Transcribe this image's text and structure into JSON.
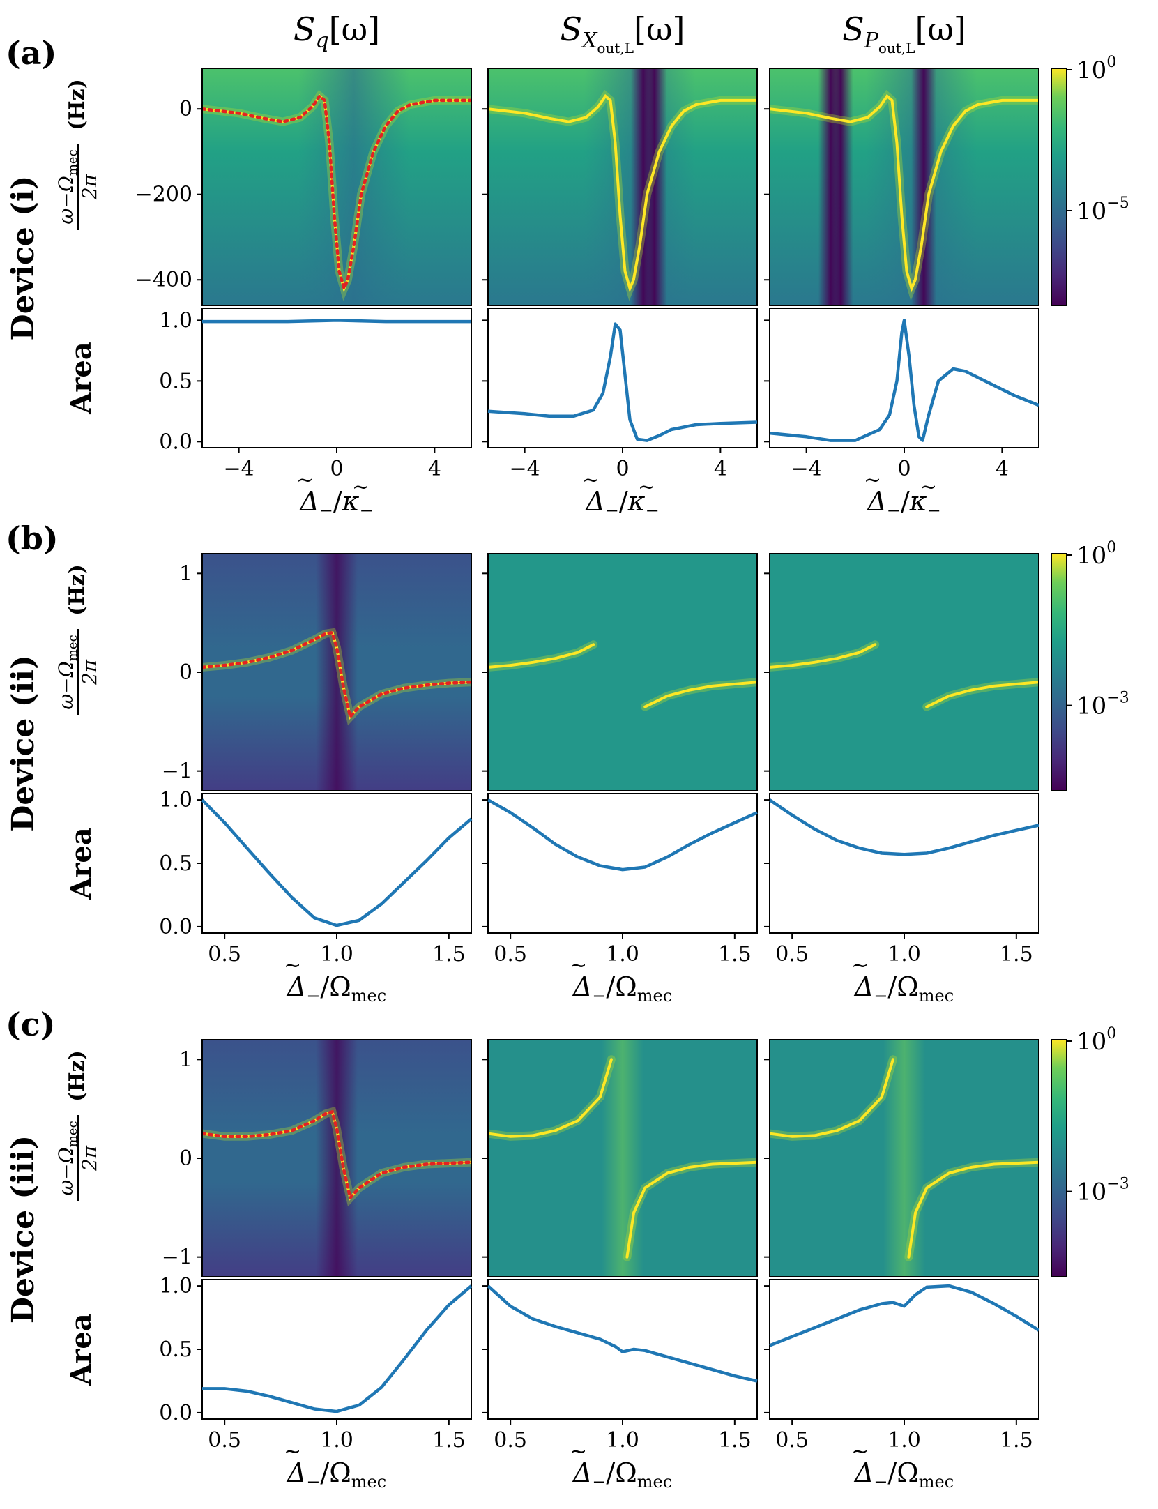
{
  "column_titles": [
    {
      "base": "S",
      "sub": "q",
      "tail": "[ω]"
    },
    {
      "base": "S",
      "sub": "X",
      "subsub": "out,L",
      "tail": "[ω]"
    },
    {
      "base": "S",
      "sub": "P",
      "subsub": "out,L",
      "tail": "[ω]"
    }
  ],
  "rows": [
    {
      "panel": "(a)",
      "device": "Device (i)",
      "area_label": "Area",
      "hz_label": "(Hz)",
      "ylabel_frac_num": "ω−Ω",
      "ylabel_frac_num_sub": "mec",
      "ylabel_frac_den": "2π",
      "xlabel": {
        "tilde": "Δ",
        "sub1": "−",
        "sep": "/",
        "tilde2": "κ",
        "sub2": "−"
      },
      "colorbar_ticks": [
        {
          "base": "10",
          "exp": "0"
        },
        {
          "base": "10",
          "exp": "−5"
        }
      ]
    },
    {
      "panel": "(b)",
      "device": "Device (ii)",
      "area_label": "Area",
      "hz_label": "(Hz)",
      "ylabel_frac_num": "ω−Ω",
      "ylabel_frac_num_sub": "mec",
      "ylabel_frac_den": "2π",
      "xlabel": {
        "tilde": "Δ",
        "sub1": "−",
        "sep": "/Ω",
        "sub2": "mec"
      },
      "colorbar_ticks": [
        {
          "base": "10",
          "exp": "0"
        },
        {
          "base": "10",
          "exp": "−3"
        }
      ]
    },
    {
      "panel": "(c)",
      "device": "Device (iii)",
      "area_label": "Area",
      "hz_label": "(Hz)",
      "ylabel_frac_num": "ω−Ω",
      "ylabel_frac_num_sub": "mec",
      "ylabel_frac_den": "2π",
      "xlabel": {
        "tilde": "Δ",
        "sub1": "−",
        "sep": "/Ω",
        "sub2": "mec"
      },
      "colorbar_ticks": [
        {
          "base": "10",
          "exp": "0"
        },
        {
          "base": "10",
          "exp": "−3"
        }
      ]
    }
  ],
  "chart_data": [
    {
      "type": "heatmap",
      "row": "(a)",
      "x_range": [
        -5.5,
        5.5
      ],
      "y_range": [
        -460,
        95
      ],
      "x_ticks": [
        "−4",
        "0",
        "4"
      ],
      "x_tick_values": [
        -4,
        0,
        4
      ],
      "y_ticks": [
        "0",
        "−200",
        "−400"
      ],
      "y_tick_values": [
        0,
        -200,
        -400
      ],
      "colormap": "viridis",
      "colorbar_scale": "log",
      "area_ylim": [
        -0.05,
        1.1
      ],
      "area_yticks": [
        "0.0",
        "0.5",
        "1.0"
      ],
      "area_ytick_values": [
        0,
        0.5,
        1.0
      ],
      "area_line_color": "#1f77b4",
      "peak_line_color": "#e32222",
      "panels": [
        {
          "ridge": {
            "x": [
              -5.5,
              -4.0,
              -3.0,
              -2.2,
              -1.5,
              -1.0,
              -0.7,
              -0.5,
              -0.3,
              -0.1,
              0.1,
              0.3,
              0.45,
              0.7,
              1.0,
              1.5,
              2.0,
              2.5,
              3.0,
              4.0,
              5.5
            ],
            "y": [
              0,
              -10,
              -22,
              -30,
              -20,
              5,
              30,
              20,
              -80,
              -250,
              -380,
              -420,
              -400,
              -320,
              -200,
              -100,
              -40,
              -5,
              10,
              20,
              20
            ]
          },
          "area": {
            "x": [
              -5.5,
              -2.0,
              0.0,
              2.0,
              5.5
            ],
            "y": [
              0.99,
              0.99,
              1.0,
              0.99,
              0.99
            ]
          }
        },
        {
          "ridge": {
            "x": [
              -5.5,
              -4.0,
              -3.0,
              -2.2,
              -1.5,
              -1.0,
              -0.7,
              -0.5,
              -0.3,
              -0.1,
              0.1,
              0.3,
              0.45,
              0.7,
              1.0,
              1.5,
              2.0,
              2.5,
              3.0,
              4.0,
              5.5
            ],
            "y": [
              0,
              -10,
              -22,
              -30,
              -20,
              5,
              30,
              20,
              -80,
              -250,
              -380,
              -420,
              -400,
              -320,
              -200,
              -100,
              -40,
              -5,
              10,
              20,
              20
            ]
          },
          "dark_bands": [
            0.85,
            1.3
          ],
          "area": {
            "x": [
              -5.5,
              -4.0,
              -3.0,
              -2.0,
              -1.2,
              -0.8,
              -0.5,
              -0.3,
              -0.1,
              0.1,
              0.3,
              0.6,
              1.0,
              1.5,
              2.0,
              3.0,
              4.0,
              5.5
            ],
            "y": [
              0.25,
              0.23,
              0.21,
              0.21,
              0.26,
              0.4,
              0.7,
              0.97,
              0.92,
              0.55,
              0.18,
              0.02,
              0.01,
              0.05,
              0.1,
              0.14,
              0.15,
              0.16
            ]
          }
        },
        {
          "ridge": {
            "x": [
              -5.5,
              -4.0,
              -3.0,
              -2.2,
              -1.5,
              -1.0,
              -0.7,
              -0.5,
              -0.3,
              -0.1,
              0.1,
              0.3,
              0.45,
              0.7,
              1.0,
              1.5,
              2.0,
              2.5,
              3.0,
              4.0,
              5.5
            ],
            "y": [
              0,
              -10,
              -22,
              -30,
              -20,
              5,
              30,
              20,
              -80,
              -250,
              -380,
              -420,
              -400,
              -320,
              -200,
              -100,
              -40,
              -5,
              10,
              20,
              20
            ]
          },
          "dark_bands": [
            -3.0,
            -2.6,
            0.8
          ],
          "area": {
            "x": [
              -5.5,
              -4.0,
              -3.0,
              -2.0,
              -1.0,
              -0.6,
              -0.3,
              -0.1,
              0.0,
              0.2,
              0.4,
              0.6,
              0.75,
              1.0,
              1.4,
              2.0,
              2.5,
              3.5,
              4.5,
              5.5
            ],
            "y": [
              0.07,
              0.04,
              0.01,
              0.01,
              0.1,
              0.22,
              0.5,
              0.9,
              1.0,
              0.7,
              0.3,
              0.04,
              0.01,
              0.22,
              0.5,
              0.6,
              0.58,
              0.48,
              0.38,
              0.3
            ]
          }
        }
      ]
    },
    {
      "type": "heatmap",
      "row": "(b)",
      "x_range": [
        0.4,
        1.6
      ],
      "y_range": [
        -1.2,
        1.2
      ],
      "x_ticks": [
        "0.5",
        "1.0",
        "1.5"
      ],
      "x_tick_values": [
        0.5,
        1.0,
        1.5
      ],
      "y_ticks": [
        "1",
        "0",
        "−1"
      ],
      "y_tick_values": [
        1,
        0,
        -1
      ],
      "colormap": "viridis",
      "colorbar_scale": "log",
      "area_ylim": [
        -0.05,
        1.05
      ],
      "area_yticks": [
        "0.0",
        "0.5",
        "1.0"
      ],
      "area_ytick_values": [
        0,
        0.5,
        1.0
      ],
      "area_line_color": "#1f77b4",
      "peak_line_color": "#e32222",
      "panels": [
        {
          "ridge": {
            "x": [
              0.4,
              0.5,
              0.6,
              0.7,
              0.8,
              0.9,
              0.95,
              0.98,
              1.0,
              1.03,
              1.06,
              1.1,
              1.2,
              1.3,
              1.4,
              1.5,
              1.6
            ],
            "y": [
              0.05,
              0.07,
              0.1,
              0.15,
              0.22,
              0.33,
              0.39,
              0.4,
              0.25,
              -0.15,
              -0.45,
              -0.35,
              -0.22,
              -0.16,
              -0.13,
              -0.11,
              -0.1
            ]
          },
          "area": {
            "x": [
              0.4,
              0.5,
              0.6,
              0.7,
              0.8,
              0.9,
              1.0,
              1.1,
              1.2,
              1.3,
              1.4,
              1.5,
              1.6
            ],
            "y": [
              1.0,
              0.82,
              0.62,
              0.42,
              0.23,
              0.07,
              0.01,
              0.05,
              0.18,
              0.35,
              0.52,
              0.7,
              0.85
            ]
          }
        },
        {
          "ridge_left": {
            "x": [
              0.4,
              0.5,
              0.6,
              0.7,
              0.8,
              0.87
            ],
            "y": [
              0.05,
              0.07,
              0.1,
              0.14,
              0.2,
              0.28
            ]
          },
          "ridge_right": {
            "x": [
              1.1,
              1.2,
              1.3,
              1.4,
              1.5,
              1.6
            ],
            "y": [
              -0.35,
              -0.24,
              -0.18,
              -0.14,
              -0.12,
              -0.1
            ]
          },
          "area": {
            "x": [
              0.4,
              0.5,
              0.6,
              0.7,
              0.8,
              0.9,
              1.0,
              1.1,
              1.2,
              1.3,
              1.4,
              1.5,
              1.6
            ],
            "y": [
              1.0,
              0.9,
              0.78,
              0.65,
              0.55,
              0.48,
              0.45,
              0.47,
              0.55,
              0.65,
              0.74,
              0.82,
              0.9
            ]
          }
        },
        {
          "ridge_left": {
            "x": [
              0.4,
              0.5,
              0.6,
              0.7,
              0.8,
              0.87
            ],
            "y": [
              0.05,
              0.07,
              0.1,
              0.14,
              0.2,
              0.28
            ]
          },
          "ridge_right": {
            "x": [
              1.1,
              1.2,
              1.3,
              1.4,
              1.5,
              1.6
            ],
            "y": [
              -0.35,
              -0.24,
              -0.18,
              -0.14,
              -0.12,
              -0.1
            ]
          },
          "area": {
            "x": [
              0.4,
              0.5,
              0.6,
              0.7,
              0.8,
              0.9,
              1.0,
              1.1,
              1.2,
              1.3,
              1.4,
              1.5,
              1.6
            ],
            "y": [
              1.0,
              0.88,
              0.77,
              0.68,
              0.62,
              0.58,
              0.57,
              0.58,
              0.62,
              0.67,
              0.72,
              0.76,
              0.8
            ]
          }
        }
      ]
    },
    {
      "type": "heatmap",
      "row": "(c)",
      "x_range": [
        0.4,
        1.6
      ],
      "y_range": [
        -1.2,
        1.2
      ],
      "x_ticks": [
        "0.5",
        "1.0",
        "1.5"
      ],
      "x_tick_values": [
        0.5,
        1.0,
        1.5
      ],
      "y_ticks": [
        "1",
        "0",
        "−1"
      ],
      "y_tick_values": [
        1,
        0,
        -1
      ],
      "colormap": "viridis",
      "colorbar_scale": "log",
      "area_ylim": [
        -0.05,
        1.05
      ],
      "area_yticks": [
        "0.0",
        "0.5",
        "1.0"
      ],
      "area_ytick_values": [
        0,
        0.5,
        1.0
      ],
      "area_line_color": "#1f77b4",
      "peak_line_color": "#e32222",
      "panels": [
        {
          "ridge": {
            "x": [
              0.4,
              0.5,
              0.6,
              0.7,
              0.8,
              0.9,
              0.95,
              0.98,
              1.0,
              1.03,
              1.06,
              1.1,
              1.2,
              1.3,
              1.4,
              1.5,
              1.6
            ],
            "y": [
              0.25,
              0.22,
              0.22,
              0.24,
              0.28,
              0.38,
              0.45,
              0.47,
              0.3,
              -0.1,
              -0.4,
              -0.3,
              -0.15,
              -0.09,
              -0.06,
              -0.05,
              -0.04
            ]
          },
          "area": {
            "x": [
              0.4,
              0.5,
              0.6,
              0.7,
              0.8,
              0.9,
              1.0,
              1.1,
              1.2,
              1.3,
              1.4,
              1.5,
              1.6
            ],
            "y": [
              0.19,
              0.19,
              0.17,
              0.13,
              0.08,
              0.03,
              0.01,
              0.06,
              0.2,
              0.42,
              0.65,
              0.85,
              1.0
            ]
          }
        },
        {
          "ridge_left": {
            "x": [
              0.4,
              0.5,
              0.6,
              0.7,
              0.8,
              0.9,
              0.95
            ],
            "y": [
              0.25,
              0.22,
              0.23,
              0.28,
              0.38,
              0.62,
              1.0
            ]
          },
          "ridge_right": {
            "x": [
              1.02,
              1.05,
              1.1,
              1.2,
              1.3,
              1.4,
              1.5,
              1.6
            ],
            "y": [
              -1.0,
              -0.55,
              -0.3,
              -0.15,
              -0.09,
              -0.06,
              -0.05,
              -0.04
            ]
          },
          "area": {
            "x": [
              0.4,
              0.5,
              0.6,
              0.7,
              0.8,
              0.9,
              0.97,
              1.0,
              1.05,
              1.1,
              1.2,
              1.3,
              1.4,
              1.5,
              1.6
            ],
            "y": [
              1.0,
              0.84,
              0.74,
              0.68,
              0.63,
              0.58,
              0.52,
              0.48,
              0.5,
              0.49,
              0.44,
              0.39,
              0.34,
              0.29,
              0.25
            ]
          }
        },
        {
          "ridge_left": {
            "x": [
              0.4,
              0.5,
              0.6,
              0.7,
              0.8,
              0.9,
              0.95
            ],
            "y": [
              0.25,
              0.22,
              0.23,
              0.28,
              0.38,
              0.62,
              1.0
            ]
          },
          "ridge_right": {
            "x": [
              1.02,
              1.05,
              1.1,
              1.2,
              1.3,
              1.4,
              1.5,
              1.6
            ],
            "y": [
              -1.0,
              -0.55,
              -0.3,
              -0.15,
              -0.09,
              -0.06,
              -0.05,
              -0.04
            ]
          },
          "area": {
            "x": [
              0.4,
              0.5,
              0.6,
              0.7,
              0.8,
              0.9,
              0.95,
              1.0,
              1.05,
              1.1,
              1.2,
              1.3,
              1.4,
              1.5,
              1.6
            ],
            "y": [
              0.53,
              0.6,
              0.67,
              0.74,
              0.81,
              0.86,
              0.87,
              0.84,
              0.93,
              0.99,
              1.0,
              0.95,
              0.86,
              0.76,
              0.65
            ]
          }
        }
      ]
    }
  ]
}
